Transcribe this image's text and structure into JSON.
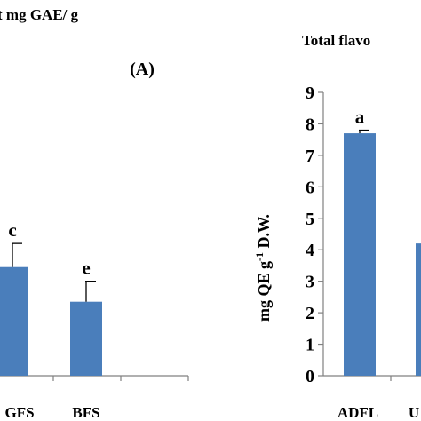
{
  "chart_data": [
    {
      "type": "bar",
      "title": "t mg GAE/ g",
      "panel_label": "(A)",
      "categories": [
        "GFS",
        "BFS",
        ""
      ],
      "values": [
        3.45,
        2.35,
        null
      ],
      "error": [
        0.75,
        0.65,
        null
      ],
      "letters": [
        "c",
        "e",
        ""
      ],
      "ylim": [
        0,
        9
      ],
      "bar_color": "#4a7ebb"
    },
    {
      "type": "bar",
      "title": "Total flavo",
      "ylabel_main": "mg QE g",
      "ylabel_sup": "-1",
      "ylabel_tail": " D.W.",
      "categories": [
        "ADFL",
        "U"
      ],
      "values": [
        7.7,
        4.2
      ],
      "error": [
        0.1,
        null
      ],
      "letters": [
        "a",
        ""
      ],
      "yticks": [
        "0",
        "1",
        "2",
        "3",
        "4",
        "5",
        "6",
        "7",
        "8",
        "9"
      ],
      "ylim": [
        0,
        9
      ],
      "bar_color": "#4a7ebb"
    }
  ]
}
